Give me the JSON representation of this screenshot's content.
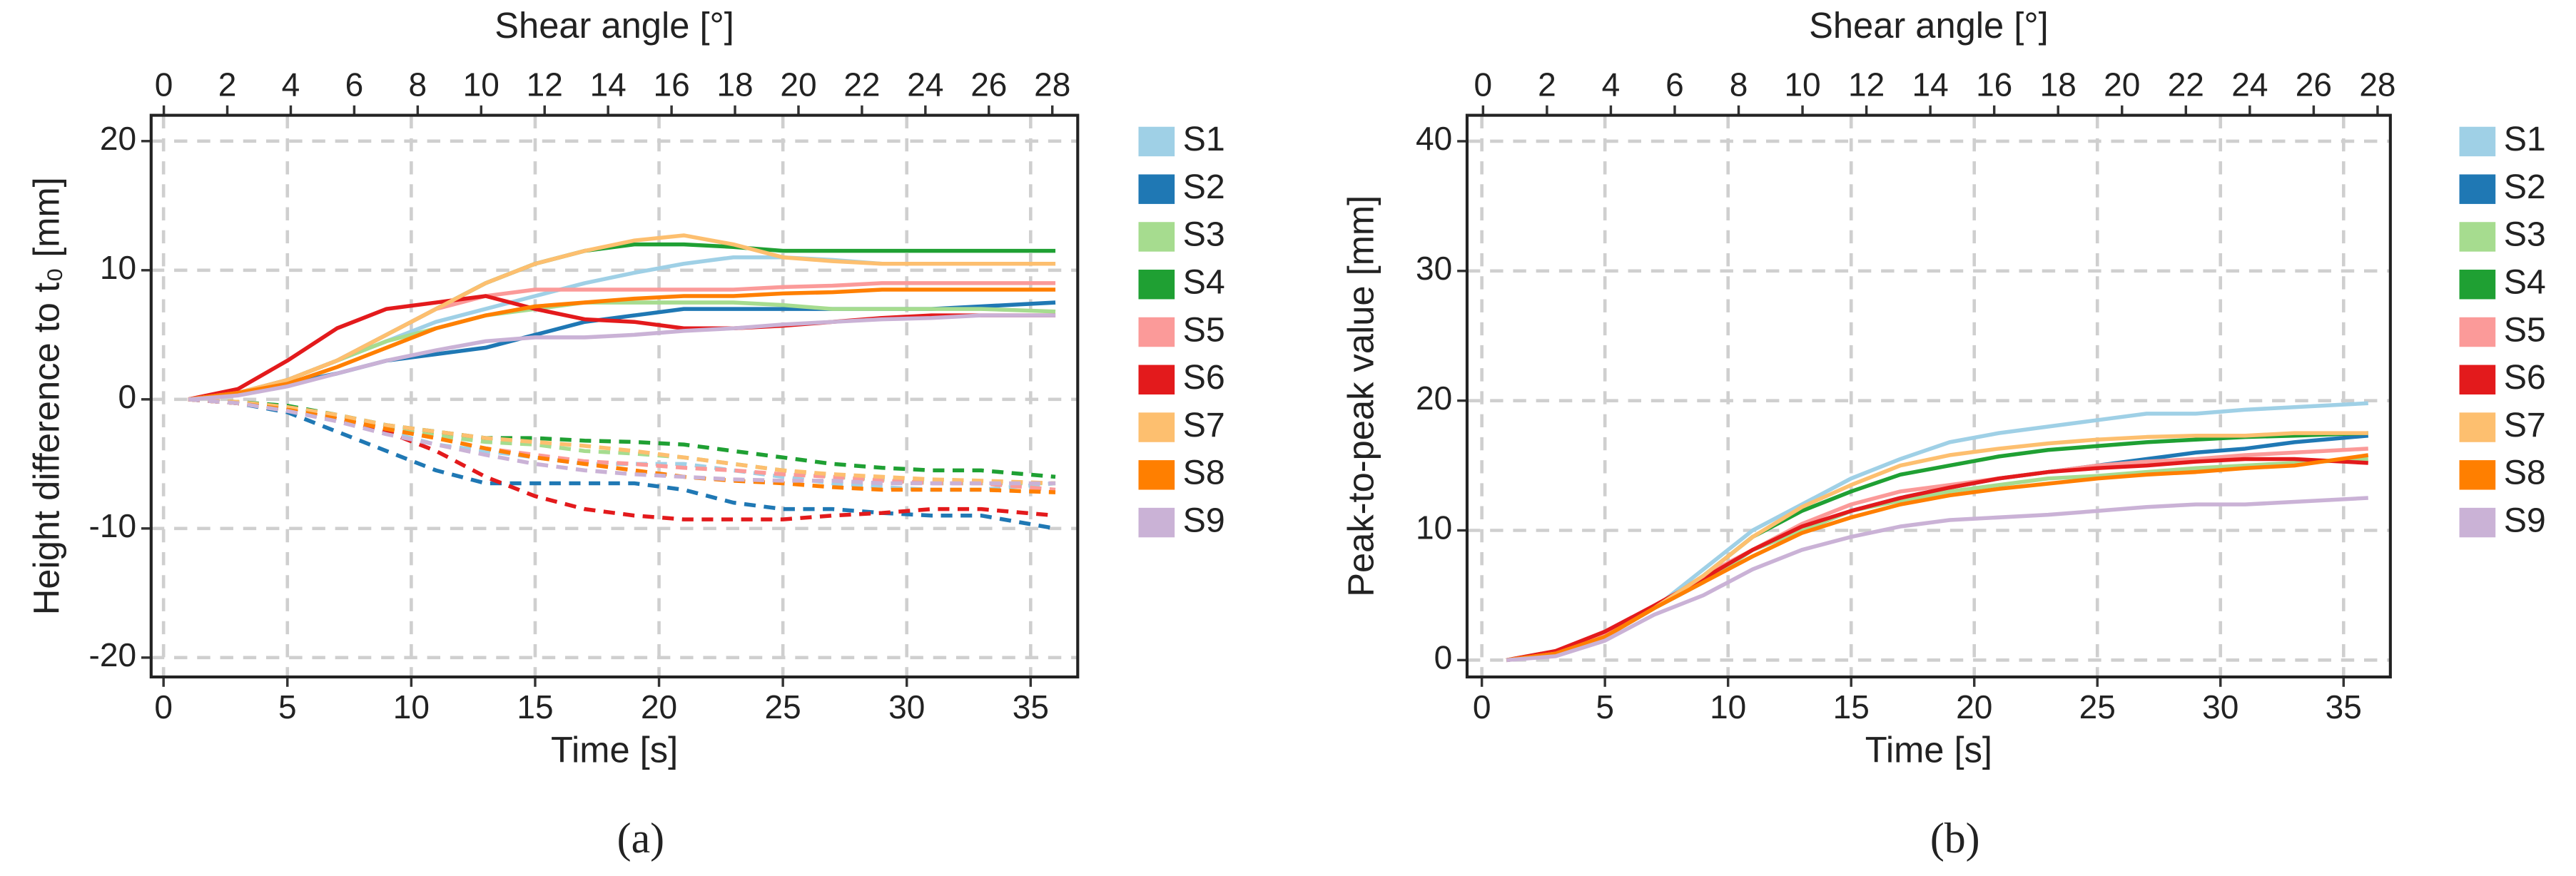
{
  "chart_data": [
    {
      "type": "line",
      "panel_label": "(a)",
      "x_label": "Time [s]",
      "x2_label": "Shear angle [°]",
      "y_label": "Height difference to t₀ [mm]",
      "xlim": [
        -0.5,
        36.9
      ],
      "xticks": [
        0,
        5,
        10,
        15,
        20,
        25,
        30,
        35
      ],
      "x2lim": [
        -0.4,
        28.8
      ],
      "x2ticks": [
        0,
        2,
        4,
        6,
        8,
        10,
        12,
        14,
        16,
        18,
        20,
        22,
        24,
        26,
        28
      ],
      "ylim": [
        -21.5,
        22
      ],
      "yticks": [
        -20,
        -10,
        0,
        10,
        20
      ],
      "grid": true,
      "x": [
        1,
        3,
        5,
        7,
        9,
        11,
        13,
        15,
        17,
        19,
        21,
        23,
        25,
        27,
        29,
        31,
        33,
        36
      ],
      "series": [
        {
          "name": "S1",
          "color": "#9fd0e6",
          "values": [
            0,
            0.5,
            1.5,
            3,
            4.5,
            6,
            7,
            8,
            9,
            9.8,
            10.5,
            11,
            11,
            10.8,
            10.5,
            10.5,
            10.5,
            10.5
          ],
          "dashed_values": [
            0,
            -0.3,
            -1,
            -1.5,
            -2.5,
            -3.5,
            -4,
            -4.5,
            -5,
            -5,
            -5,
            -5.5,
            -6,
            -6.5,
            -6.8,
            -7,
            -7,
            -6.5
          ]
        },
        {
          "name": "S2",
          "color": "#1f78b4",
          "values": [
            0,
            0.5,
            1.2,
            2,
            3,
            3.5,
            4,
            5,
            6,
            6.5,
            7,
            7,
            7,
            7,
            7,
            7,
            7.2,
            7.5
          ],
          "dashed_values": [
            0,
            -0.3,
            -1,
            -2.5,
            -4,
            -5.5,
            -6.5,
            -6.5,
            -6.5,
            -6.5,
            -7,
            -8,
            -8.5,
            -8.5,
            -8.8,
            -9,
            -9,
            -10
          ]
        },
        {
          "name": "S3",
          "color": "#a6dc8f",
          "values": [
            0,
            0.5,
            1.5,
            3,
            4.5,
            5.5,
            6.5,
            7,
            7.5,
            7.5,
            7.5,
            7.5,
            7.3,
            7,
            7,
            7,
            7,
            6.8
          ],
          "dashed_values": [
            0,
            -0.3,
            -0.8,
            -1.5,
            -2.2,
            -2.8,
            -3.3,
            -3.5,
            -4,
            -4.2,
            -4.5,
            -5,
            -5.5,
            -6,
            -6.2,
            -6.5,
            -6.5,
            -6.5
          ]
        },
        {
          "name": "S4",
          "color": "#1fa033",
          "values": [
            0,
            0.5,
            1.5,
            3,
            5,
            7,
            9,
            10.5,
            11.5,
            12,
            12,
            11.8,
            11.5,
            11.5,
            11.5,
            11.5,
            11.5,
            11.5
          ],
          "dashed_values": [
            0,
            -0.2,
            -0.5,
            -1.2,
            -2,
            -2.5,
            -3,
            -3,
            -3.2,
            -3.3,
            -3.5,
            -4,
            -4.5,
            -5,
            -5.3,
            -5.5,
            -5.5,
            -6
          ]
        },
        {
          "name": "S5",
          "color": "#fb9a99",
          "values": [
            0,
            0.5,
            1.5,
            3,
            5,
            7,
            8,
            8.5,
            8.5,
            8.5,
            8.5,
            8.5,
            8.7,
            8.8,
            9,
            9,
            9,
            9
          ],
          "dashed_values": [
            0,
            -0.3,
            -0.8,
            -1.5,
            -2.3,
            -3,
            -3.8,
            -4.3,
            -4.8,
            -5,
            -5.3,
            -5.5,
            -5.8,
            -6,
            -6.3,
            -6.5,
            -6.5,
            -7
          ]
        },
        {
          "name": "S6",
          "color": "#e31a1c",
          "values": [
            0,
            0.8,
            3,
            5.5,
            7,
            7.5,
            8,
            7,
            6.2,
            6,
            5.5,
            5.5,
            5.7,
            6,
            6.3,
            6.5,
            6.5,
            6.5
          ],
          "dashed_values": [
            0,
            -0.3,
            -0.8,
            -1.5,
            -2.5,
            -4,
            -6,
            -7.5,
            -8.5,
            -9,
            -9.3,
            -9.3,
            -9.3,
            -9,
            -8.8,
            -8.5,
            -8.5,
            -9
          ]
        },
        {
          "name": "S7",
          "color": "#fdbf6f",
          "values": [
            0,
            0.5,
            1.5,
            3,
            5,
            7,
            9,
            10.5,
            11.5,
            12.3,
            12.7,
            12,
            11,
            10.7,
            10.5,
            10.5,
            10.5,
            10.5
          ],
          "dashed_values": [
            0,
            -0.2,
            -0.6,
            -1.2,
            -2,
            -2.5,
            -3,
            -3.3,
            -3.6,
            -4,
            -4.5,
            -5,
            -5.5,
            -5.8,
            -6,
            -6.2,
            -6.3,
            -6.5
          ]
        },
        {
          "name": "S8",
          "color": "#ff7f00",
          "values": [
            0,
            0.5,
            1.2,
            2.5,
            4,
            5.5,
            6.5,
            7.2,
            7.5,
            7.8,
            8,
            8,
            8.2,
            8.3,
            8.5,
            8.5,
            8.5,
            8.5
          ],
          "dashed_values": [
            0,
            -0.3,
            -0.8,
            -1.5,
            -2.3,
            -3,
            -3.8,
            -4.5,
            -5,
            -5.5,
            -6,
            -6.3,
            -6.5,
            -6.8,
            -7,
            -7,
            -7,
            -7.2
          ]
        },
        {
          "name": "S9",
          "color": "#cab2d6",
          "values": [
            0,
            0.3,
            1,
            2,
            3,
            3.8,
            4.5,
            4.8,
            4.8,
            5,
            5.3,
            5.5,
            5.8,
            6,
            6.2,
            6.3,
            6.5,
            6.5
          ],
          "dashed_values": [
            0,
            -0.3,
            -0.9,
            -1.7,
            -2.7,
            -3.5,
            -4.3,
            -5,
            -5.5,
            -5.8,
            -6,
            -6.2,
            -6.3,
            -6.3,
            -6.5,
            -6.5,
            -6.5,
            -6.5
          ]
        }
      ]
    },
    {
      "type": "line",
      "panel_label": "(b)",
      "x_label": "Time [s]",
      "x2_label": "Shear angle [°]",
      "y_label": "Peak-to-peak value [mm]",
      "xlim": [
        -0.6,
        36.9
      ],
      "xticks": [
        0,
        5,
        10,
        15,
        20,
        25,
        30,
        35
      ],
      "x2lim": [
        -0.5,
        28.4
      ],
      "x2ticks": [
        0,
        2,
        4,
        6,
        8,
        10,
        12,
        14,
        16,
        18,
        20,
        22,
        24,
        26,
        28
      ],
      "ylim": [
        -1.3,
        42
      ],
      "yticks": [
        0,
        10,
        20,
        30,
        40
      ],
      "grid": true,
      "x": [
        1,
        3,
        5,
        7,
        9,
        11,
        13,
        15,
        17,
        19,
        21,
        23,
        25,
        27,
        29,
        31,
        33,
        36
      ],
      "series": [
        {
          "name": "S1",
          "color": "#9fd0e6",
          "values": [
            0,
            0.5,
            1.8,
            4,
            7,
            10,
            12,
            14,
            15.5,
            16.8,
            17.5,
            18,
            18.5,
            19,
            19,
            19.3,
            19.5,
            19.8
          ]
        },
        {
          "name": "S2",
          "color": "#1f78b4",
          "values": [
            0,
            0.5,
            1.8,
            4,
            6,
            8.5,
            10,
            11.5,
            12.5,
            13.3,
            14,
            14.5,
            15,
            15.5,
            16,
            16.3,
            16.8,
            17.3
          ]
        },
        {
          "name": "S3",
          "color": "#a6dc8f",
          "values": [
            0,
            0.7,
            1.8,
            4,
            6,
            8.5,
            10,
            11.5,
            12.3,
            13,
            13.5,
            14,
            14.2,
            14.5,
            14.8,
            15,
            15.2,
            15.5
          ]
        },
        {
          "name": "S4",
          "color": "#1fa033",
          "values": [
            0,
            0.5,
            1.8,
            4,
            6.5,
            9.5,
            11.5,
            13,
            14.3,
            15,
            15.7,
            16.2,
            16.5,
            16.8,
            17,
            17.2,
            17.3,
            17.5
          ]
        },
        {
          "name": "S5",
          "color": "#fb9a99",
          "values": [
            0,
            0.5,
            2,
            4,
            6.5,
            8.5,
            10.5,
            12,
            13,
            13.5,
            14,
            14.5,
            15,
            15.3,
            15.5,
            15.8,
            16,
            16.3
          ]
        },
        {
          "name": "S6",
          "color": "#e31a1c",
          "values": [
            0,
            0.7,
            2.2,
            4.2,
            6.3,
            8.5,
            10.3,
            11.5,
            12.5,
            13.3,
            14,
            14.5,
            14.8,
            15,
            15.3,
            15.5,
            15.5,
            15.2
          ]
        },
        {
          "name": "S7",
          "color": "#fdbf6f",
          "values": [
            0,
            0.5,
            1.8,
            4,
            6.5,
            9.5,
            11.8,
            13.5,
            15,
            15.8,
            16.3,
            16.7,
            17,
            17.2,
            17.3,
            17.3,
            17.5,
            17.5
          ]
        },
        {
          "name": "S8",
          "color": "#ff7f00",
          "values": [
            0,
            0.5,
            1.8,
            4,
            6,
            8,
            9.8,
            11,
            12,
            12.7,
            13.2,
            13.6,
            14,
            14.3,
            14.5,
            14.8,
            15,
            15.8
          ]
        },
        {
          "name": "S9",
          "color": "#cab2d6",
          "values": [
            0,
            0.3,
            1.5,
            3.5,
            5,
            7,
            8.5,
            9.5,
            10.3,
            10.8,
            11,
            11.2,
            11.5,
            11.8,
            12,
            12,
            12.2,
            12.5
          ]
        }
      ]
    }
  ]
}
